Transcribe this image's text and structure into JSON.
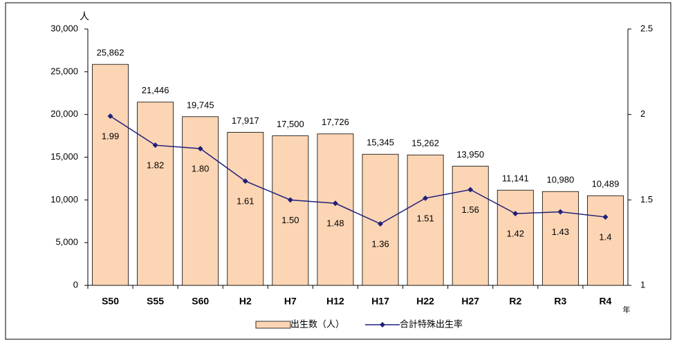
{
  "chart_data": {
    "type": "bar_line",
    "y_axis_label": "人",
    "x_axis_label": "年",
    "categories": [
      "S50",
      "S55",
      "S60",
      "H2",
      "H7",
      "H12",
      "H17",
      "H22",
      "H27",
      "R2",
      "R3",
      "R4"
    ],
    "series": [
      {
        "name": "出生数（人）",
        "type": "bar",
        "color": "#fcd5b4",
        "values": [
          25862,
          21446,
          19745,
          17917,
          17500,
          17726,
          15345,
          15262,
          13950,
          11141,
          10980,
          10489
        ],
        "value_labels": [
          "25,862",
          "21,446",
          "19,745",
          "17,917",
          "17,500",
          "17,726",
          "15,345",
          "15,262",
          "13,950",
          "11,141",
          "10,980",
          "10,489"
        ]
      },
      {
        "name": "合計特殊出生率",
        "type": "line",
        "axis": "y2",
        "color": "#1f1f7a",
        "values": [
          1.99,
          1.82,
          1.8,
          1.61,
          1.5,
          1.48,
          1.36,
          1.51,
          1.56,
          1.42,
          1.43,
          1.4
        ],
        "value_labels": [
          "1.99",
          "1.82",
          "1.80",
          "1.61",
          "1.50",
          "1.48",
          "1.36",
          "1.51",
          "1.56",
          "1.42",
          "1.43",
          "1.4"
        ]
      }
    ],
    "ylim": [
      0,
      30000
    ],
    "yticks": [
      0,
      {
        "value": 5000,
        "label": "5,000"
      },
      {
        "value": 10000,
        "label": "10,000"
      },
      {
        "value": 15000,
        "label": "15,000"
      },
      {
        "value": 20000,
        "label": "20,000"
      },
      {
        "value": 25000,
        "label": "25,000"
      },
      {
        "value": 30000,
        "label": "30,000"
      }
    ],
    "y2lim": [
      1,
      2.5
    ],
    "y2ticks": [
      1,
      1.5,
      2,
      2.5
    ],
    "grid": false,
    "legend": "bottom"
  }
}
